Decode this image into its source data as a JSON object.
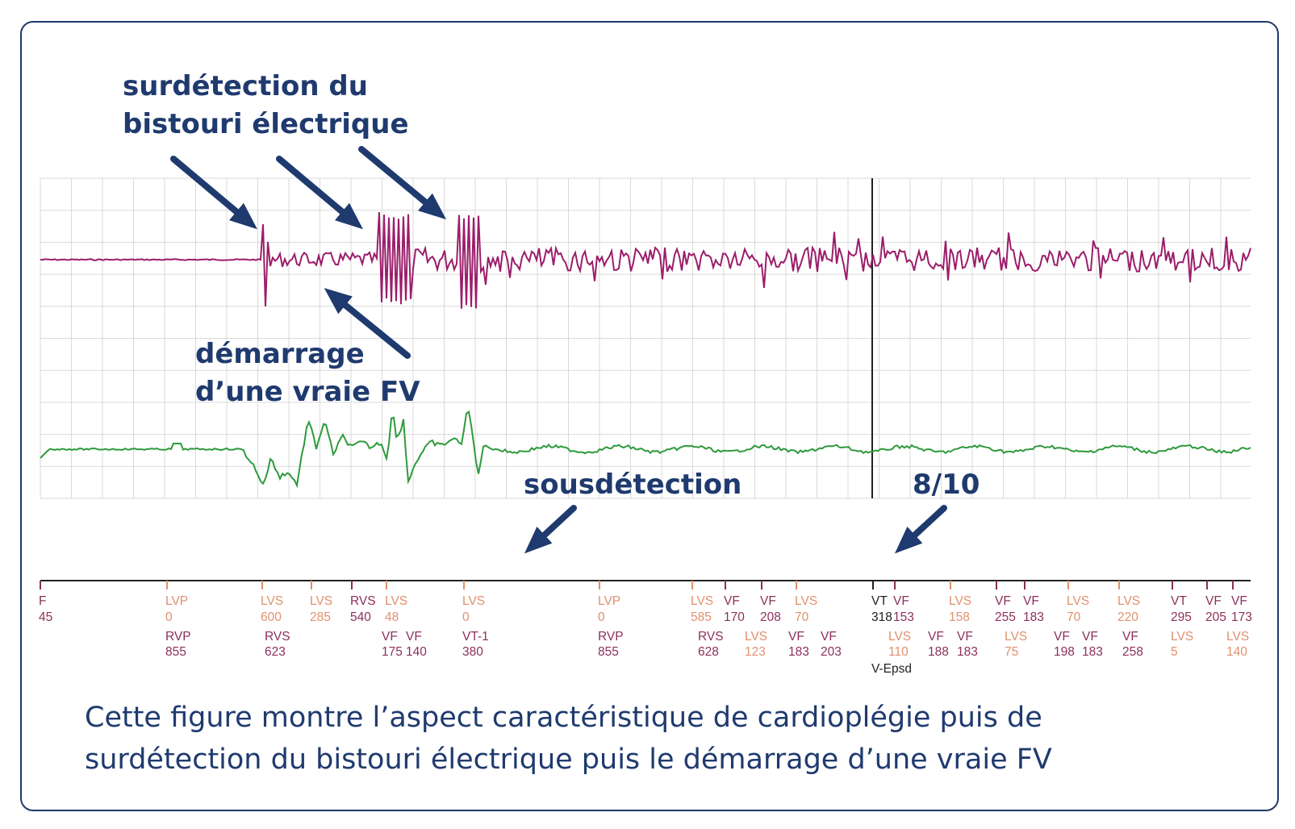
{
  "callouts": {
    "overdetection_line1": "surdétection du",
    "overdetection_line2": "bistouri électrique",
    "vf_start_line1": "démarrage",
    "vf_start_line2": "d’une vraie FV",
    "underdetection": "sousdétection",
    "ratio": "8/10"
  },
  "caption": {
    "line1": "Cette figure montre l’aspect caractéristique de cardioplégie puis de",
    "line2": "surdétection du bistouri électrique puis le démarrage d’une vraie FV"
  },
  "colors": {
    "frame": "#1f3a6e",
    "annotation": "#1f3a6e",
    "egm_top": "#9b1d6a",
    "egm_bottom": "#2e9a3c",
    "marker_orange": "#e0906e",
    "marker_dark": "#8c2f5b",
    "marker_black": "#222222",
    "grid": "#d9d9d9"
  },
  "markers": {
    "episode_label": "V-Epsd",
    "upper": [
      {
        "t": "F",
        "v": "45",
        "c": "dark"
      },
      {
        "t": "LVP",
        "v": "0",
        "c": "orange"
      },
      {
        "t": "LVS",
        "v": "600",
        "c": "orange"
      },
      {
        "t": "LVS",
        "v": "285",
        "c": "orange"
      },
      {
        "t": "RVS",
        "v": "540",
        "c": "dark"
      },
      {
        "t": "LVS",
        "v": "48",
        "c": "orange"
      },
      {
        "t": "LVS",
        "v": "0",
        "c": "orange"
      },
      {
        "t": "LVP",
        "v": "0",
        "c": "orange"
      },
      {
        "t": "LVS",
        "v": "585",
        "c": "orange"
      },
      {
        "t": "VF",
        "v": "170",
        "c": "dark"
      },
      {
        "t": "VF",
        "v": "208",
        "c": "dark"
      },
      {
        "t": "LVS",
        "v": "70",
        "c": "orange"
      },
      {
        "t": "VT",
        "v": "318",
        "c": "black"
      },
      {
        "t": "VF",
        "v": "153",
        "c": "dark"
      },
      {
        "t": "LVS",
        "v": "158",
        "c": "orange"
      },
      {
        "t": "VF",
        "v": "255",
        "c": "dark"
      },
      {
        "t": "VF",
        "v": "183",
        "c": "dark"
      },
      {
        "t": "LVS",
        "v": "70",
        "c": "orange"
      },
      {
        "t": "LVS",
        "v": "220",
        "c": "orange"
      },
      {
        "t": "VT",
        "v": "295",
        "c": "dark"
      },
      {
        "t": "VF",
        "v": "205",
        "c": "dark"
      },
      {
        "t": "VF",
        "v": "173",
        "c": "dark"
      }
    ],
    "lower": [
      {
        "t": "RVP",
        "v": "855",
        "c": "dark"
      },
      {
        "t": "RVS",
        "v": "623",
        "c": "dark"
      },
      {
        "t": "VF",
        "v": "175",
        "c": "dark"
      },
      {
        "t": "VF",
        "v": "140",
        "c": "dark"
      },
      {
        "t": "VT-1",
        "v": "380",
        "c": "dark"
      },
      {
        "t": "RVP",
        "v": "855",
        "c": "dark"
      },
      {
        "t": "RVS",
        "v": "628",
        "c": "dark"
      },
      {
        "t": "LVS",
        "v": "123",
        "c": "orange"
      },
      {
        "t": "VF",
        "v": "183",
        "c": "dark"
      },
      {
        "t": "VF",
        "v": "203",
        "c": "dark"
      },
      {
        "t": "LVS",
        "v": "110",
        "c": "orange"
      },
      {
        "t": "VF",
        "v": "188",
        "c": "dark"
      },
      {
        "t": "VF",
        "v": "183",
        "c": "dark"
      },
      {
        "t": "LVS",
        "v": "75",
        "c": "orange"
      },
      {
        "t": "VF",
        "v": "198",
        "c": "dark"
      },
      {
        "t": "VF",
        "v": "183",
        "c": "dark"
      },
      {
        "t": "VF",
        "v": "258",
        "c": "dark"
      },
      {
        "t": "LVS",
        "v": "5",
        "c": "orange"
      },
      {
        "t": "LVS",
        "v": "140",
        "c": "orange"
      }
    ]
  }
}
